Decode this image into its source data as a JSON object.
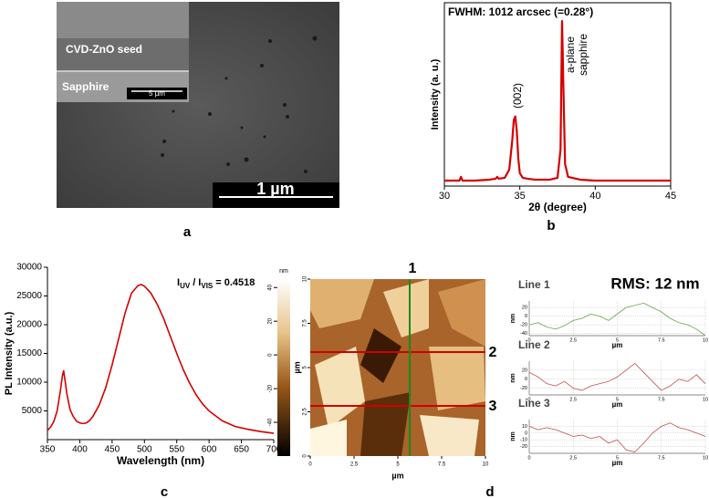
{
  "chart_data": [
    {
      "type": "line",
      "title": "FWHM: 1012 arcsec (=0.28°)",
      "xlabel": "2θ (degree)",
      "ylabel": "Intensity (a. u.)",
      "annotations": [
        "(002)",
        "a-plane",
        "sapphire"
      ],
      "x": [
        30,
        31,
        31.1,
        31.2,
        32,
        33,
        33.4,
        33.5,
        33.6,
        34,
        34.3,
        34.5,
        34.6,
        34.7,
        34.8,
        34.9,
        35,
        35.2,
        35.5,
        36,
        37,
        37.5,
        37.7,
        37.8,
        37.9,
        38,
        38.2,
        39,
        40,
        41,
        42,
        43,
        44,
        45
      ],
      "series": [
        {
          "color": "#d40000",
          "values": [
            0.03,
            0.03,
            0.05,
            0.03,
            0.03,
            0.035,
            0.04,
            0.05,
            0.04,
            0.045,
            0.09,
            0.25,
            0.36,
            0.38,
            0.3,
            0.15,
            0.07,
            0.045,
            0.04,
            0.035,
            0.035,
            0.045,
            0.2,
            0.9,
            0.5,
            0.12,
            0.05,
            0.035,
            0.03,
            0.03,
            0.03,
            0.03,
            0.03,
            0.03
          ]
        }
      ],
      "xlim": [
        30,
        45
      ],
      "xticks": [
        30,
        35,
        40,
        45
      ],
      "ylim": [
        0,
        1
      ]
    },
    {
      "type": "line",
      "xlabel": "Wavelength (nm)",
      "ylabel": "PL Intensity (a.u.)",
      "ratio_label": [
        "I",
        "UV",
        "/ I",
        "VIS",
        "= 0.4518"
      ],
      "x": [
        350,
        355,
        360,
        365,
        370,
        373,
        375,
        377,
        380,
        385,
        390,
        395,
        400,
        405,
        410,
        415,
        420,
        430,
        440,
        450,
        460,
        470,
        480,
        490,
        495,
        500,
        510,
        520,
        530,
        540,
        550,
        560,
        570,
        580,
        590,
        600,
        620,
        640,
        660,
        680,
        700
      ],
      "series": [
        {
          "color": "#d40000",
          "values": [
            1600,
            2200,
            3200,
            5000,
            8500,
            11000,
            12000,
            10500,
            8000,
            5200,
            4000,
            3200,
            2900,
            2800,
            2900,
            3300,
            4000,
            6000,
            9000,
            13000,
            17500,
            22000,
            25500,
            26800,
            27000,
            26700,
            25500,
            23500,
            21000,
            18000,
            15000,
            12200,
            9800,
            7800,
            6200,
            5000,
            3300,
            2300,
            1800,
            1400,
            1100
          ]
        }
      ],
      "xlim": [
        350,
        700
      ],
      "xticks": [
        350,
        400,
        450,
        500,
        550,
        600,
        650,
        700
      ],
      "ylim": [
        0,
        30000
      ],
      "yticks": [
        5000,
        10000,
        15000,
        20000,
        25000,
        30000
      ]
    },
    {
      "type": "line",
      "title": "Line 1",
      "xlabel": "µm",
      "ylabel": "nm",
      "grid": true,
      "x": [
        0,
        0.5,
        1,
        1.5,
        2,
        2.5,
        3,
        3.5,
        4,
        4.5,
        5,
        5.5,
        6,
        6.5,
        7,
        7.5,
        8,
        8.5,
        9,
        9.5,
        10
      ],
      "series": [
        {
          "color": "#6aa84f",
          "values": [
            -20,
            -15,
            -25,
            -30,
            -22,
            -10,
            -5,
            5,
            0,
            -10,
            5,
            20,
            25,
            30,
            20,
            10,
            -5,
            -15,
            -20,
            -30,
            -45
          ]
        }
      ],
      "xlim": [
        0,
        10
      ],
      "xticks": [
        0,
        2.5,
        5,
        7.5,
        10
      ],
      "ylim": [
        -45,
        35
      ],
      "yticks": [
        -40,
        -20,
        0,
        20
      ]
    },
    {
      "type": "line",
      "title": "Line 2",
      "xlabel": "µm",
      "ylabel": "nm",
      "grid": true,
      "x": [
        0,
        0.5,
        1,
        1.5,
        2,
        2.5,
        3,
        3.5,
        4,
        4.5,
        5,
        5.5,
        6,
        6.5,
        7,
        7.5,
        8,
        8.5,
        9,
        9.5,
        10
      ],
      "series": [
        {
          "color": "#c0504d",
          "values": [
            15,
            5,
            -10,
            -15,
            -5,
            -20,
            -25,
            -15,
            -10,
            -5,
            5,
            20,
            35,
            15,
            -5,
            -25,
            -15,
            0,
            -5,
            10,
            -10
          ]
        }
      ],
      "xlim": [
        0,
        10
      ],
      "xticks": [
        0,
        2.5,
        5,
        7.5,
        10
      ],
      "ylim": [
        -35,
        40
      ],
      "yticks": [
        -20,
        0,
        20
      ]
    },
    {
      "type": "line",
      "title": "Line 3",
      "xlabel": "µm",
      "ylabel": "nm",
      "grid": true,
      "x": [
        0,
        0.5,
        1,
        1.5,
        2,
        2.5,
        3,
        3.5,
        4,
        4.5,
        5,
        5.5,
        6,
        6.5,
        7,
        7.5,
        8,
        8.5,
        9,
        9.5,
        10
      ],
      "series": [
        {
          "color": "#c0504d",
          "values": [
            10,
            5,
            8,
            5,
            0,
            -5,
            -3,
            -8,
            -5,
            -15,
            -10,
            -25,
            -28,
            -15,
            0,
            10,
            15,
            8,
            5,
            0,
            -5
          ]
        }
      ],
      "xlim": [
        0,
        10
      ],
      "xticks": [
        0,
        2.5,
        5,
        7.5,
        10
      ],
      "ylim": [
        -30,
        20
      ],
      "yticks": [
        -20,
        -10,
        0,
        10
      ]
    }
  ],
  "images": {
    "sem": {
      "inset_labels": [
        "CVD-ZnO seed",
        "Sapphire"
      ],
      "inset_scale": "5 µm",
      "scale": "1 µm"
    },
    "afm": {
      "colorbar_unit": "nm",
      "colorbar_lim": [
        -60,
        45
      ],
      "colorbar_ticks": [
        40,
        20,
        0,
        -20,
        -40
      ],
      "lim": [
        0,
        10
      ],
      "ticks": [
        0,
        2.5,
        5,
        7.5,
        10
      ],
      "xlabel": "µm",
      "ylabel": "µm",
      "line_labels": [
        "1",
        "2",
        "3"
      ],
      "rms": "RMS: 12 nm"
    }
  },
  "panel_labels": [
    "a",
    "b",
    "c",
    "d"
  ]
}
